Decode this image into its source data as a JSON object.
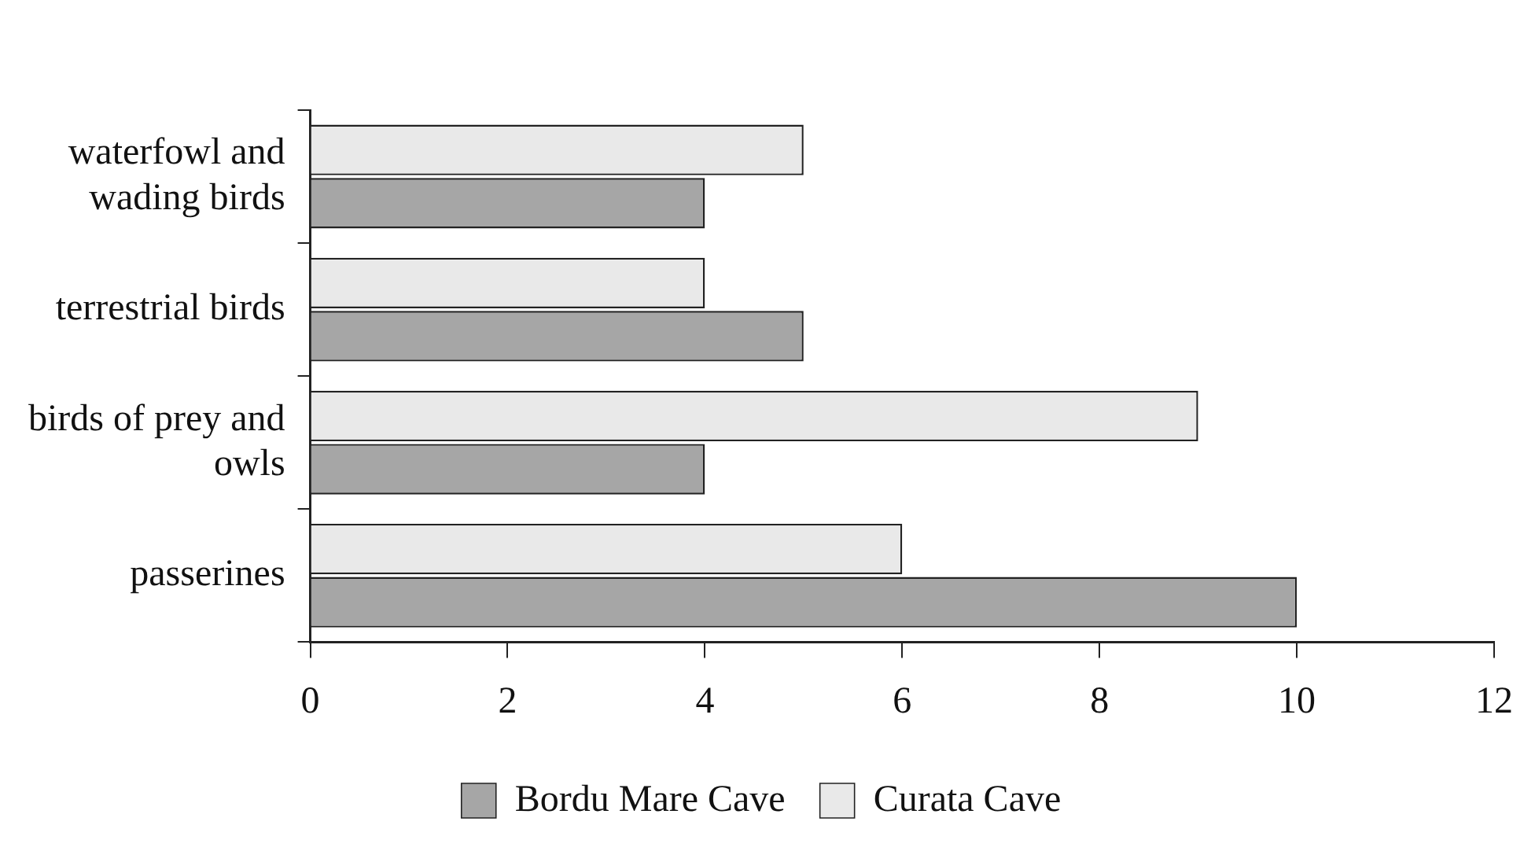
{
  "chart_data": {
    "type": "bar",
    "orientation": "horizontal",
    "categories": [
      "waterfowl and wading birds",
      "terrestrial birds",
      "birds of prey and owls",
      "passerines"
    ],
    "series": [
      {
        "name": "Bordu Mare Cave",
        "color": "#a6a6a6",
        "values": [
          4,
          5,
          4,
          10
        ]
      },
      {
        "name": "Curata Cave",
        "color": "#e9e9e9",
        "values": [
          5,
          4,
          9,
          6
        ]
      }
    ],
    "xlim": [
      0,
      12
    ],
    "xticks": [
      0,
      2,
      4,
      6,
      8,
      10,
      12
    ],
    "grid": false,
    "legend": "bottom"
  }
}
